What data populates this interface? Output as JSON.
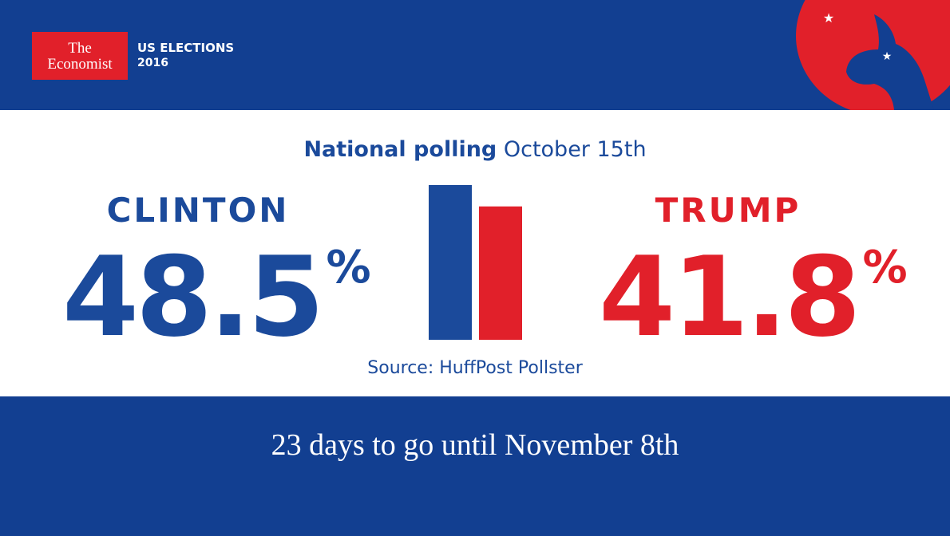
{
  "brand": {
    "logo": [
      "The",
      "Economist"
    ],
    "section": [
      "US ELECTIONS",
      "2016"
    ]
  },
  "chart_data": {
    "type": "bar",
    "title": "National polling",
    "subtitle": "October 15th",
    "categories": [
      "CLINTON",
      "TRUMP"
    ],
    "values": [
      48.5,
      41.8
    ],
    "unit": "%",
    "colors": [
      "#1b4a9b",
      "#e1202a"
    ],
    "ylim": [
      0,
      50
    ],
    "source": "Source: HuffPost Pollster"
  },
  "footer": "23 days to go until November 8th"
}
